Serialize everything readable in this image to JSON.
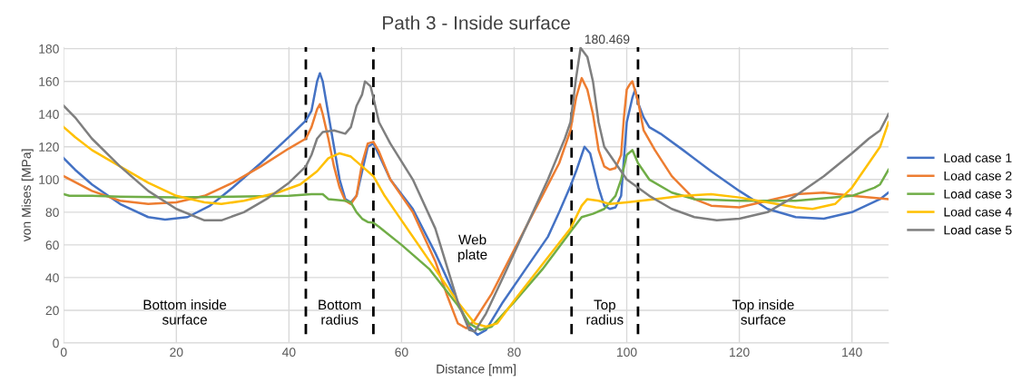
{
  "chart_data": {
    "type": "line",
    "title": "Path 3 - Inside surface",
    "xlabel": "Distance [mm]",
    "ylabel": "von Mises [MPa]",
    "xlim": [
      0,
      146.5
    ],
    "xticks": [
      0,
      20,
      40,
      60,
      80,
      100,
      120,
      140
    ],
    "ylim": [
      0,
      181
    ],
    "yticks": [
      0,
      20,
      40,
      60,
      80,
      100,
      120,
      140,
      160,
      180
    ],
    "grid": true,
    "legend": "right",
    "marker": "none",
    "line_style": "solid",
    "series": [
      {
        "name": "Load case 1",
        "color": "#4472c4",
        "x": [
          0,
          2,
          5,
          10,
          15,
          18,
          22,
          26,
          30,
          35,
          40,
          43,
          44,
          45,
          45.5,
          46,
          47,
          48,
          49,
          50,
          51,
          52,
          53,
          54,
          55,
          56,
          58,
          62,
          66,
          70,
          72,
          73.5,
          75,
          78,
          82,
          86,
          88,
          90,
          91,
          92,
          92.5,
          93.5,
          95,
          96,
          97,
          98,
          99,
          100,
          101,
          101.5,
          102,
          103,
          104,
          106,
          110,
          115,
          120,
          125,
          130,
          135,
          140,
          145,
          146.5
        ],
        "values": [
          113,
          106,
          97,
          85,
          77,
          75.5,
          77,
          84,
          95,
          110,
          126,
          136,
          142,
          160,
          165,
          160,
          140,
          120,
          100,
          88,
          86,
          90,
          105,
          120,
          122,
          115,
          100,
          82,
          55,
          25,
          10,
          5,
          8,
          25,
          45,
          65,
          80,
          96,
          105,
          115,
          120,
          116,
          95,
          84,
          82,
          83,
          90,
          135,
          150,
          155,
          147,
          138,
          132,
          128,
          118,
          105,
          93,
          82,
          77,
          76,
          80,
          88,
          92
        ]
      },
      {
        "name": "Load case 2",
        "color": "#ed7d31",
        "x": [
          0,
          5,
          10,
          15,
          20,
          25,
          30,
          35,
          40,
          43,
          44,
          45,
          45.5,
          46,
          47,
          48,
          49,
          50,
          51,
          52,
          53,
          54,
          55,
          56,
          58,
          62,
          66,
          68,
          70,
          71.5,
          73,
          76,
          80,
          85,
          88,
          90,
          91,
          92,
          93,
          94,
          95,
          96,
          97,
          98,
          99,
          99.5,
          100,
          100.5,
          101,
          102,
          103,
          105,
          108,
          112,
          115,
          120,
          125,
          130,
          135,
          140,
          146.5
        ],
        "values": [
          102,
          93,
          87,
          85,
          86,
          90,
          98,
          108,
          119,
          125,
          132,
          143,
          146,
          140,
          125,
          108,
          95,
          87,
          85,
          90,
          110,
          122,
          123,
          117,
          100,
          80,
          50,
          30,
          12,
          9,
          14,
          30,
          57,
          90,
          110,
          130,
          150,
          162,
          155,
          140,
          118,
          108,
          106,
          107,
          115,
          138,
          155,
          158,
          160,
          148,
          130,
          118,
          102,
          88,
          84,
          83,
          87,
          91,
          92,
          90,
          88
        ]
      },
      {
        "name": "Load case 3",
        "color": "#70ad47",
        "x": [
          0,
          1,
          5,
          10,
          20,
          30,
          40,
          44,
          46,
          47,
          50,
          51,
          52,
          53,
          54,
          55,
          56,
          60,
          65,
          70,
          72,
          74,
          76,
          80,
          85,
          90,
          92,
          94,
          96,
          98,
          99,
          100,
          101,
          102,
          104,
          108,
          112,
          120,
          130,
          140,
          144,
          145,
          146.5
        ],
        "values": [
          91,
          90,
          90,
          89.5,
          89,
          89.5,
          90,
          91,
          91,
          88,
          87,
          86,
          80,
          76,
          74,
          73.5,
          71,
          60,
          45,
          23,
          12,
          8,
          10,
          25,
          45,
          68,
          77,
          79,
          82,
          90,
          100,
          115,
          118,
          110,
          100,
          92,
          88,
          87,
          87,
          90,
          95,
          97,
          106
        ]
      },
      {
        "name": "Load case 4",
        "color": "#ffc000",
        "x": [
          0,
          2,
          5,
          10,
          15,
          20,
          25,
          28,
          32,
          38,
          42,
          45,
          47,
          49,
          51,
          53,
          55,
          57,
          60,
          65,
          70,
          73,
          75,
          77,
          80,
          85,
          90,
          92,
          93,
          95,
          97,
          100,
          105,
          110,
          115,
          120,
          125,
          130,
          133,
          137,
          140,
          143,
          145,
          146.5
        ],
        "values": [
          132,
          126,
          118,
          108,
          98,
          90,
          86,
          85,
          87,
          92,
          97,
          105,
          113,
          116,
          114,
          108,
          102,
          90,
          75,
          50,
          25,
          12,
          10,
          12,
          26,
          48,
          70,
          84,
          88,
          87,
          85,
          86,
          88,
          90,
          91,
          89,
          86,
          83,
          82,
          85,
          95,
          110,
          120,
          135
        ]
      },
      {
        "name": "Load case 5",
        "color": "#7f7f7f",
        "x": [
          0,
          2,
          5,
          10,
          15,
          20,
          25,
          28,
          32,
          36,
          40,
          43,
          44,
          45,
          46,
          48,
          50,
          51,
          52,
          53,
          53.5,
          54.5,
          55,
          56,
          58,
          62,
          66,
          70,
          72,
          73,
          75,
          78,
          82,
          86,
          89,
          90,
          91,
          91.8,
          93,
          94,
          95,
          96,
          98,
          100,
          102,
          104,
          108,
          112,
          116,
          120,
          125,
          130,
          135,
          140,
          143,
          145,
          146.5
        ],
        "values": [
          145,
          138,
          125,
          108,
          93,
          82,
          75,
          75,
          80,
          88,
          98,
          108,
          115,
          125,
          129,
          130,
          128,
          132,
          145,
          152,
          160,
          157,
          150,
          135,
          122,
          100,
          70,
          25,
          8,
          7,
          18,
          40,
          70,
          100,
          125,
          135,
          162,
          180.469,
          175,
          160,
          135,
          120,
          110,
          100,
          95,
          90,
          82,
          77,
          75,
          76,
          80,
          90,
          102,
          116,
          125,
          130,
          140
        ]
      }
    ],
    "ref_lines": [
      {
        "axis": "x",
        "value": 43,
        "color": "#000000",
        "line_style": "dashed"
      },
      {
        "axis": "x",
        "value": 55,
        "color": "#000000",
        "line_style": "dashed"
      },
      {
        "axis": "x",
        "value": 90.2,
        "color": "#000000",
        "line_style": "dashed"
      },
      {
        "axis": "x",
        "value": 102,
        "color": "#000000",
        "line_style": "dashed"
      }
    ],
    "annotations": [
      {
        "text": "180.469",
        "x": 91.8,
        "y": 180.469
      },
      "Bottom inside\nsurface",
      "Bottom\nradius",
      "Web\nplate",
      "Top\nradius",
      "Top inside\nsurface"
    ]
  }
}
